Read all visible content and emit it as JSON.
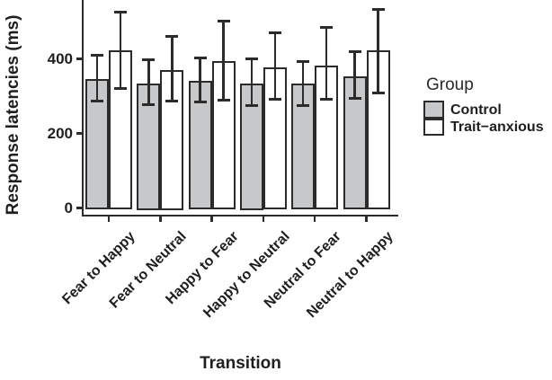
{
  "colors": {
    "outline": "#2b2b2b",
    "text": "#1f1f1f",
    "control_fill": "#c6c8ca",
    "trait_fill": "#ffffff"
  },
  "chart_data": {
    "type": "bar",
    "title": "",
    "xlabel": "Transition",
    "ylabel": "Response latencies (ms)",
    "legend_title": "Group",
    "legend_position": "right",
    "grid": false,
    "error_bars": true,
    "bar_outline": "#2b2b2b",
    "ylim": [
      0,
      557
    ],
    "yticks": [
      0,
      200,
      400
    ],
    "categories": [
      "Fear to Happy",
      "Fear to Neutral",
      "Happy to Fear",
      "Happy to Neutral",
      "Neutral to Fear",
      "Neutral to Happy"
    ],
    "series": [
      {
        "name": "Control",
        "fill": "#c6c8ca",
        "values": [
          345,
          335,
          342,
          335,
          333,
          352
        ],
        "error_low": [
          287,
          277,
          284,
          275,
          275,
          294
        ],
        "error_high": [
          410,
          398,
          403,
          400,
          393,
          419
        ]
      },
      {
        "name": "Trait−anxious",
        "fill": "#ffffff",
        "values": [
          422,
          371,
          393,
          378,
          383,
          422
        ],
        "error_low": [
          321,
          287,
          289,
          292,
          292,
          309
        ],
        "error_high": [
          525,
          460,
          501,
          470,
          484,
          533
        ]
      }
    ]
  }
}
